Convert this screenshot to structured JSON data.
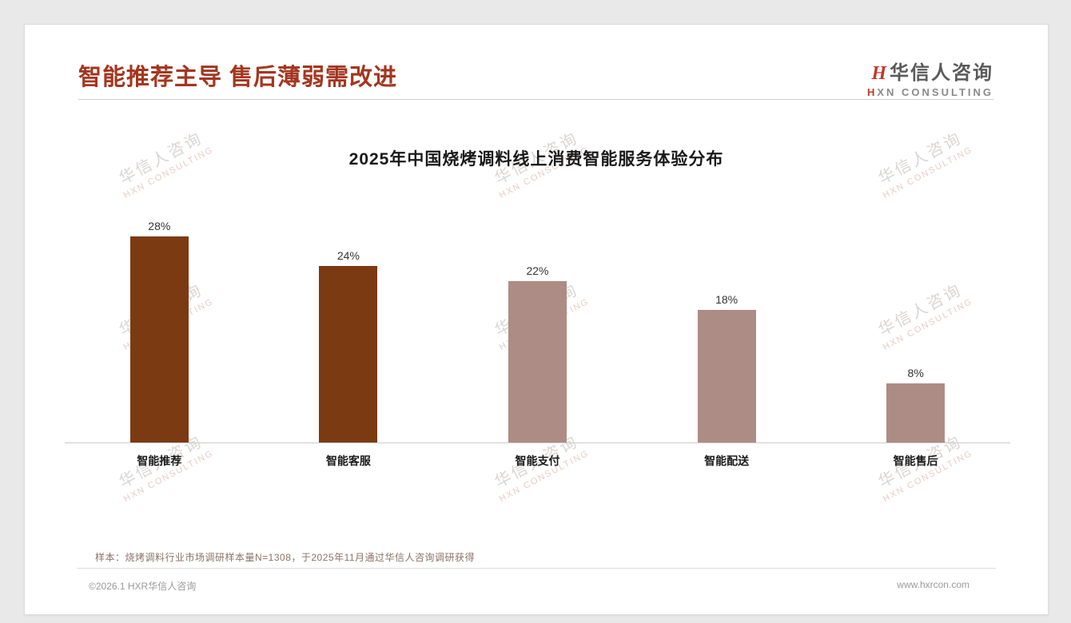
{
  "page": {
    "title": "智能推荐主导 售后薄弱需改进",
    "note": "样本：烧烤调料行业市场调研样本量N=1308，于2025年11月通过华信人咨询调研获得",
    "footer_left": "©2026.1 HXR华信人咨询",
    "footer_right": "www.hxrcon.com"
  },
  "logo": {
    "mark": "H",
    "cn": "华信人咨询",
    "en_mark": "H",
    "en_rest": "XN CONSULTING"
  },
  "watermark": {
    "cn": "华信人咨询",
    "en": "HXN CONSULTING"
  },
  "chart_data": {
    "type": "bar",
    "title": "2025年中国烧烤调料线上消费智能服务体验分布",
    "categories": [
      "智能推荐",
      "智能客服",
      "智能支付",
      "智能配送",
      "智能售后"
    ],
    "values": [
      28,
      24,
      22,
      18,
      8
    ],
    "value_labels": [
      "28%",
      "24%",
      "22%",
      "18%",
      "8%"
    ],
    "bar_colors": [
      "#7B3A12",
      "#7B3A12",
      "#AD8C85",
      "#AD8C85",
      "#AD8C85"
    ],
    "xlabel": "",
    "ylabel": "",
    "ylim": [
      0,
      30
    ],
    "grid": false,
    "legend": false
  },
  "colors": {
    "accent": "#A4361F",
    "bar_dark": "#7B3A12",
    "bar_light": "#AD8C85"
  }
}
